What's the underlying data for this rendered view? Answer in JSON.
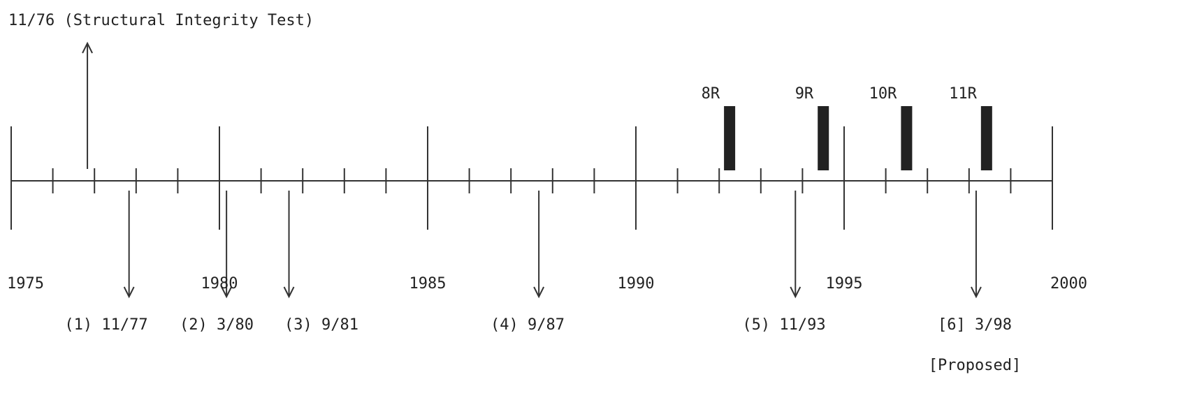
{
  "timeline": {
    "start_year": 1975,
    "end_year": 2000,
    "year_labels": [
      "1975",
      "1980",
      "1985",
      "1990",
      "1995",
      "2000"
    ],
    "top_event": {
      "label": "11/76 (Structural Integrity Test)",
      "date": 1976.83
    },
    "events": [
      {
        "label": "(1) 11/77",
        "date": 1977.83
      },
      {
        "label": "(2) 3/80",
        "date": 1980.17
      },
      {
        "label": "(3) 9/81",
        "date": 1981.67
      },
      {
        "label": "(4) 9/87",
        "date": 1987.67
      },
      {
        "label": "(5) 11/93",
        "date": 1993.83
      },
      {
        "label": "[6] 3/98",
        "date": 1998.17,
        "note": "[Proposed]"
      }
    ],
    "outages": [
      {
        "label": "8R",
        "date": 1992.25
      },
      {
        "label": "9R",
        "date": 1994.5
      },
      {
        "label": "10R",
        "date": 1996.5
      },
      {
        "label": "11R",
        "date": 1998.42
      }
    ],
    "colors": {
      "line": "#333333",
      "bar": "#222222",
      "text": "#222222"
    }
  }
}
